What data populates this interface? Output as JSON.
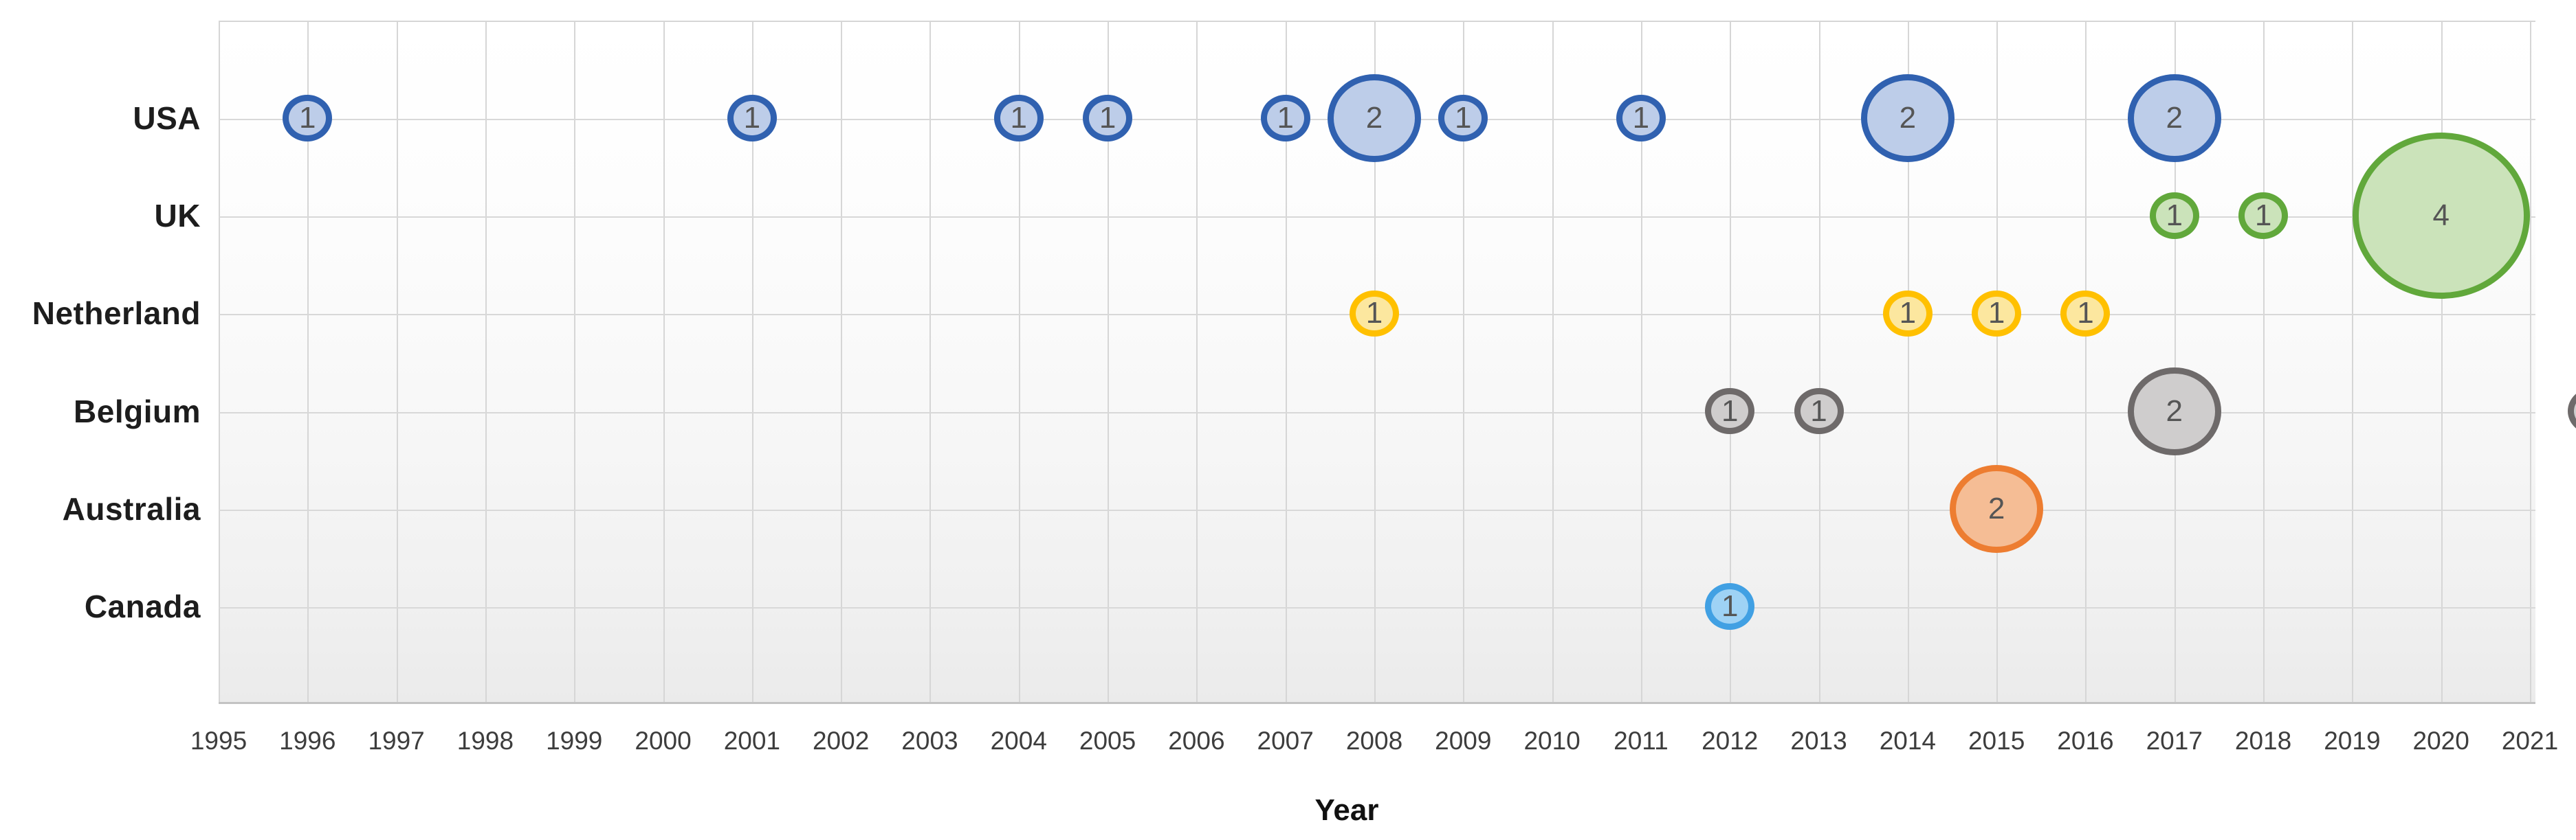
{
  "chart_data": {
    "type": "scatter",
    "subtype": "bubble",
    "title": "",
    "xlabel": "Year",
    "ylabel": "",
    "xlim": [
      1995,
      2021
    ],
    "grid": true,
    "legend": false,
    "x_tick_labels": [
      "1995",
      "1996",
      "1997",
      "1998",
      "1999",
      "2000",
      "2001",
      "2002",
      "2003",
      "2004",
      "2005",
      "2006",
      "2007",
      "2008",
      "2009",
      "2010",
      "2011",
      "2012",
      "2013",
      "2014",
      "2015",
      "2016",
      "2017",
      "2018",
      "2019",
      "2020",
      "2021"
    ],
    "categories": [
      "USA",
      "UK",
      "Netherland",
      "Belgium",
      "Australia",
      "Canada"
    ],
    "series": [
      {
        "name": "USA",
        "stroke": "#3061B0",
        "fill": "#BDCDE9",
        "points": [
          {
            "year": 1996,
            "value": 1
          },
          {
            "year": 2001,
            "value": 1
          },
          {
            "year": 2004,
            "value": 1
          },
          {
            "year": 2005,
            "value": 1
          },
          {
            "year": 2007,
            "value": 1
          },
          {
            "year": 2008,
            "value": 2
          },
          {
            "year": 2009,
            "value": 1
          },
          {
            "year": 2011,
            "value": 1
          },
          {
            "year": 2014,
            "value": 2
          },
          {
            "year": 2017,
            "value": 2
          }
        ]
      },
      {
        "name": "UK",
        "stroke": "#61A83B",
        "fill": "#CBE3BA",
        "points": [
          {
            "year": 2017,
            "value": 1
          },
          {
            "year": 2018,
            "value": 1
          },
          {
            "year": 2020,
            "value": 4
          }
        ]
      },
      {
        "name": "Netherland",
        "stroke": "#FFC000",
        "fill": "#FCE79F",
        "points": [
          {
            "year": 2008,
            "value": 1
          },
          {
            "year": 2014,
            "value": 1
          },
          {
            "year": 2015,
            "value": 1
          },
          {
            "year": 2016,
            "value": 1
          }
        ]
      },
      {
        "name": "Belgium",
        "stroke": "#6E6A6A",
        "fill": "#CFCDCD",
        "points": [
          {
            "year": 2012,
            "value": 1
          },
          {
            "year": 2013,
            "value": 1
          },
          {
            "year": 2017,
            "value": 2
          }
        ]
      },
      {
        "name": "Australia",
        "stroke": "#ED7D31",
        "fill": "#F5BD95",
        "points": [
          {
            "year": 2015,
            "value": 2
          }
        ]
      },
      {
        "name": "Canada",
        "stroke": "#41A0E3",
        "fill": "#9ED2F5",
        "points": [
          {
            "year": 2012,
            "value": 1
          }
        ]
      }
    ],
    "clipped_bubble": {
      "row": "Belgium",
      "year": 2021.7,
      "stroke": "#6E6A6A",
      "fill": "#CFCDCD"
    },
    "colors": {
      "gridline": "#D6D6D6",
      "bubble_label": "#555555",
      "tick_label": "#3D3D3D",
      "category_label": "#1D1D1D"
    }
  }
}
